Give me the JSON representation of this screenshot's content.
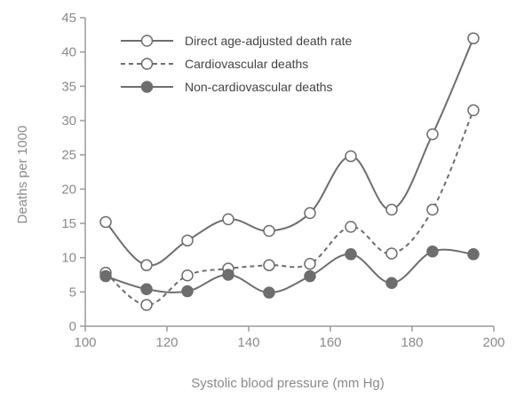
{
  "chart_data": {
    "type": "line",
    "title": "",
    "xlabel": "Systolic blood pressure (mm Hg)",
    "ylabel": "Deaths per 1000",
    "xlim": [
      100,
      200
    ],
    "ylim": [
      0,
      45
    ],
    "xticks": [
      100,
      120,
      140,
      160,
      180,
      200
    ],
    "yticks": [
      0,
      5,
      10,
      15,
      20,
      25,
      30,
      35,
      40,
      45
    ],
    "grid": false,
    "legend_position": "top-left",
    "x": [
      105,
      115,
      125,
      135,
      145,
      155,
      165,
      175,
      185,
      195
    ],
    "series": [
      {
        "name": "Direct age-adjusted death rate",
        "style": "solid",
        "marker": "open-circle",
        "color": "#6d6d6d",
        "values": [
          15.2,
          8.9,
          12.5,
          15.6,
          13.9,
          16.5,
          24.8,
          17.0,
          28.0,
          42.0
        ]
      },
      {
        "name": "Cardiovascular deaths",
        "style": "dashed",
        "marker": "open-circle",
        "color": "#6d6d6d",
        "values": [
          7.8,
          3.1,
          7.4,
          8.4,
          8.9,
          9.1,
          14.5,
          10.6,
          17.0,
          31.5
        ]
      },
      {
        "name": "Non-cardiovascular deaths",
        "style": "solid",
        "marker": "filled-circle",
        "color": "#6d6d6d",
        "values": [
          7.3,
          5.4,
          5.1,
          7.5,
          4.9,
          7.3,
          10.5,
          6.3,
          10.9,
          10.5
        ]
      }
    ]
  }
}
